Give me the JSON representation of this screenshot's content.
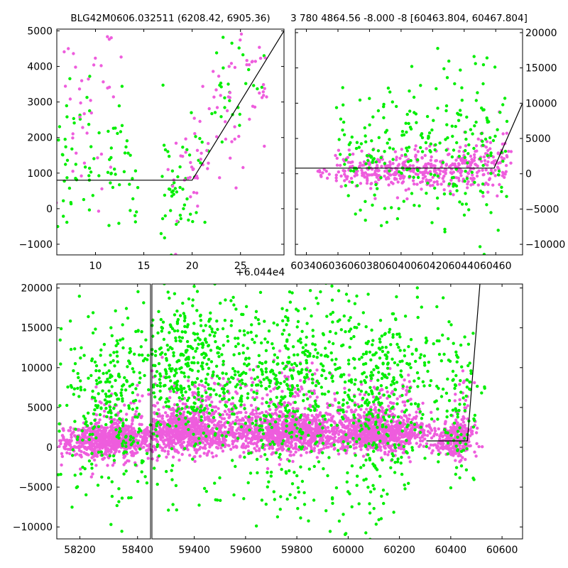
{
  "colors": {
    "magenta": "#ee5ddd",
    "green": "#00ee00",
    "line": "#000000"
  },
  "chart_data": [
    {
      "type": "scatter",
      "title": "BLG42M0606.032511 (6208.42, 6905.36)",
      "xlim": [
        6,
        29.5
      ],
      "ylim": [
        -1300,
        5050
      ],
      "xticks": [
        10,
        15,
        20,
        25
      ],
      "yticks": [
        -1000,
        0,
        1000,
        2000,
        3000,
        4000,
        5000
      ],
      "y_axis_side": "left",
      "series": [
        {
          "color_key": "green",
          "clusters": [
            [
              6.8,
              0.7,
              1200,
              1500,
              22
            ],
            [
              8,
              0.5,
              1500,
              1400,
              12
            ],
            [
              9.5,
              0.4,
              1400,
              1100,
              12
            ],
            [
              11.5,
              0.7,
              1400,
              1000,
              18
            ],
            [
              13,
              0.7,
              1200,
              1000,
              14
            ],
            [
              14,
              0.3,
              800,
              800,
              6
            ],
            [
              17.5,
              0.4,
              1500,
              1600,
              14
            ],
            [
              18.5,
              0.7,
              500,
              700,
              22
            ],
            [
              19.5,
              0.5,
              500,
              700,
              10
            ],
            [
              21,
              0.5,
              1500,
              900,
              8
            ],
            [
              23.5,
              1.0,
              2800,
              1200,
              18
            ],
            [
              25.5,
              1,
              4200,
              600,
              10
            ]
          ]
        },
        {
          "color_key": "magenta",
          "clusters": [
            [
              7.5,
              0.8,
              2500,
              1500,
              14
            ],
            [
              9,
              0.8,
              2000,
              1200,
              10
            ],
            [
              10.5,
              0.8,
              2500,
              1300,
              10
            ],
            [
              11.5,
              0.8,
              4200,
              700,
              6
            ],
            [
              18.5,
              0.6,
              800,
              900,
              10
            ],
            [
              20,
              0.4,
              800,
              700,
              10
            ],
            [
              21,
              0.7,
              1300,
              600,
              14
            ],
            [
              23,
              1.2,
              2500,
              900,
              26
            ],
            [
              25.5,
              1.2,
              3700,
              700,
              18
            ],
            [
              27.3,
              0.3,
              2600,
              900,
              6
            ]
          ]
        }
      ],
      "lines": [
        {
          "x": [
            6,
            20,
            29.5
          ],
          "y": [
            800,
            800,
            5000
          ]
        }
      ]
    },
    {
      "type": "scatter",
      "title": "3 780 4864.56 -8.000 -8 [60463.804, 60467.804]",
      "x_offset_label": "+6.044e4",
      "xlim": [
        60333,
        60477
      ],
      "ylim": [
        -11500,
        20500
      ],
      "xticks": [
        60340,
        60360,
        60380,
        60400,
        60420,
        60440,
        60460
      ],
      "xtick_labels": [
        "60340",
        "60360",
        "60380",
        "60400",
        "60420",
        "60440",
        "60460"
      ],
      "yticks": [
        -10000,
        -5000,
        0,
        5000,
        10000,
        15000,
        20000
      ],
      "y_axis_side": "right",
      "series": [
        {
          "color_key": "magenta",
          "clusters": [
            [
              60350,
              3,
              200,
              500,
              10
            ],
            [
              60365,
              4,
              500,
              1200,
              40
            ],
            [
              60380,
              5,
              500,
              1200,
              70
            ],
            [
              60395,
              6,
              600,
              1300,
              70
            ],
            [
              60410,
              6,
              700,
              1300,
              70
            ],
            [
              60425,
              6,
              800,
              1500,
              70
            ],
            [
              60440,
              6,
              900,
              1700,
              70
            ],
            [
              60455,
              5,
              1200,
              2300,
              70
            ],
            [
              60465,
              2,
              2500,
              2500,
              20
            ]
          ]
        },
        {
          "color_key": "green",
          "clusters": [
            [
              60366,
              5,
              2000,
              4500,
              25
            ],
            [
              60380,
              5,
              2500,
              5000,
              35
            ],
            [
              60395,
              6,
              3000,
              5500,
              35
            ],
            [
              60410,
              6,
              3000,
              6000,
              40
            ],
            [
              60425,
              6,
              3500,
              6000,
              40
            ],
            [
              60440,
              6,
              4000,
              6000,
              45
            ],
            [
              60455,
              5,
              4500,
              6000,
              35
            ],
            [
              60465,
              2,
              3000,
              5000,
              12
            ]
          ]
        }
      ],
      "lines": [
        {
          "x": [
            60333,
            60459,
            60477
          ],
          "y": [
            800,
            800,
            10000
          ]
        }
      ]
    },
    {
      "type": "scatter",
      "title": "",
      "xlim": [
        58120,
        60680
      ],
      "ylim": [
        -11500,
        20500
      ],
      "xticks": [
        58200,
        58400,
        59400,
        59600,
        59800,
        60000,
        60200,
        60400,
        60600
      ],
      "yticks": [
        -10000,
        -5000,
        0,
        5000,
        10000,
        15000,
        20000
      ],
      "y_axis_side": "left",
      "x_break_after": 58445,
      "x_break_resume": 59235,
      "series": [
        {
          "color_key": "magenta",
          "clusters": [
            [
              58300,
              90,
              900,
              900,
              700
            ],
            [
              58330,
              90,
              2000,
              2200,
              150
            ],
            [
              59370,
              130,
              2000,
              1300,
              900
            ],
            [
              59400,
              130,
              4500,
              2500,
              200
            ],
            [
              59760,
              100,
              1800,
              1200,
              800
            ],
            [
              59790,
              100,
              5000,
              3000,
              150
            ],
            [
              60110,
              100,
              1800,
              1200,
              800
            ],
            [
              60120,
              100,
              4500,
              2800,
              150
            ],
            [
              60420,
              40,
              1000,
              1000,
              250
            ],
            [
              60450,
              20,
              3500,
              3000,
              50
            ]
          ]
        },
        {
          "color_key": "green",
          "clusters": [
            [
              58320,
              90,
              7000,
              5000,
              300
            ],
            [
              59400,
              140,
              10000,
              5000,
              500
            ],
            [
              59790,
              110,
              8000,
              5500,
              350
            ],
            [
              60120,
              110,
              8000,
              5500,
              350
            ],
            [
              60430,
              40,
              6000,
              5000,
              100
            ],
            [
              58300,
              100,
              -4000,
              3000,
              30
            ],
            [
              59400,
              140,
              -4000,
              3500,
              40
            ],
            [
              59790,
              110,
              -4500,
              4000,
              40
            ],
            [
              60120,
              110,
              -4500,
              4000,
              40
            ]
          ]
        }
      ],
      "lines": [
        {
          "x": [
            60305,
            60465,
            60515
          ],
          "y": [
            800,
            800,
            21000
          ]
        }
      ]
    }
  ]
}
